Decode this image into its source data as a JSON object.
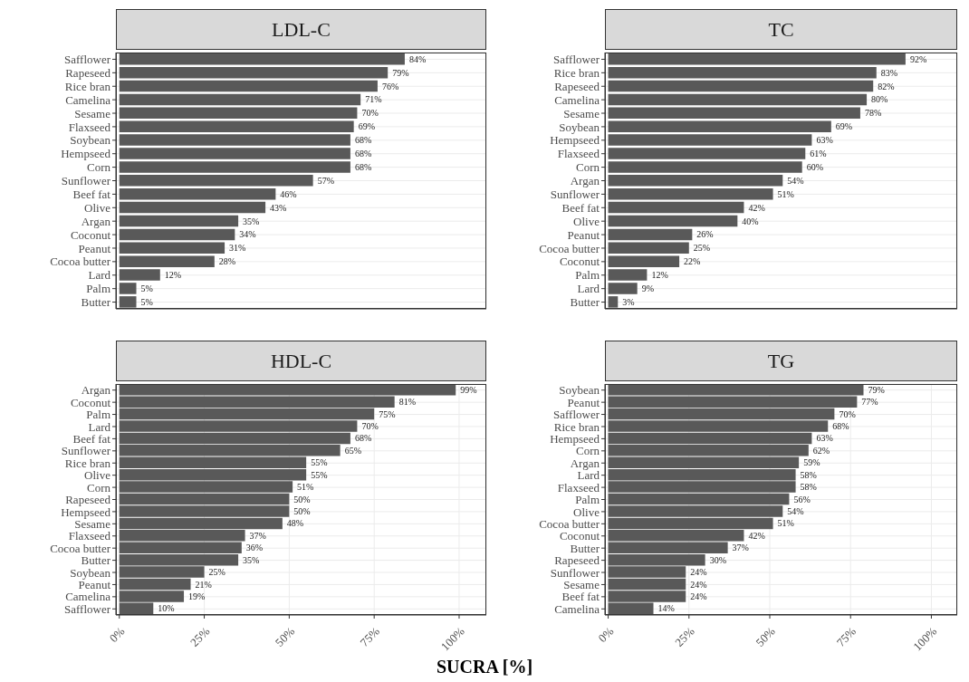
{
  "chart_data": [
    {
      "type": "bar",
      "orientation": "horizontal",
      "title": "LDL-C",
      "categories": [
        "Safflower",
        "Rapeseed",
        "Rice bran",
        "Camelina",
        "Sesame",
        "Flaxseed",
        "Soybean",
        "Hempseed",
        "Corn",
        "Sunflower",
        "Beef fat",
        "Olive",
        "Argan",
        "Coconut",
        "Peanut",
        "Cocoa butter",
        "Lard",
        "Palm",
        "Butter"
      ],
      "values": [
        84,
        79,
        76,
        71,
        70,
        69,
        68,
        68,
        68,
        57,
        46,
        43,
        35,
        34,
        31,
        28,
        12,
        5,
        5
      ],
      "value_labels": [
        "84%",
        "79%",
        "76%",
        "71%",
        "70%",
        "69%",
        "68%",
        "68%",
        "68%",
        "57%",
        "46%",
        "43%",
        "35%",
        "34%",
        "31%",
        "28%",
        "12%",
        "5%",
        "5%"
      ],
      "color": "#595959",
      "xlim": [
        -1,
        108
      ],
      "xticks": [
        {
          "value": 0,
          "label": null
        },
        {
          "value": 25,
          "label": null
        },
        {
          "value": 50,
          "label": null
        },
        {
          "value": 75,
          "label": null
        },
        {
          "value": 100,
          "label": null
        }
      ],
      "grid": true,
      "tick_labels": "y"
    },
    {
      "type": "bar",
      "orientation": "horizontal",
      "title": "TC",
      "categories": [
        "Safflower",
        "Rice bran",
        "Rapeseed",
        "Camelina",
        "Sesame",
        "Soybean",
        "Hempseed",
        "Flaxseed",
        "Corn",
        "Argan",
        "Sunflower",
        "Beef fat",
        "Olive",
        "Peanut",
        "Cocoa butter",
        "Coconut",
        "Palm",
        "Lard",
        "Butter"
      ],
      "values": [
        92,
        83,
        82,
        80,
        78,
        69,
        63,
        61,
        60,
        54,
        51,
        42,
        40,
        26,
        25,
        22,
        12,
        9,
        3
      ],
      "value_labels": [
        "92%",
        "83%",
        "82%",
        "80%",
        "78%",
        "69%",
        "63%",
        "61%",
        "60%",
        "54%",
        "51%",
        "42%",
        "40%",
        "26%",
        "25%",
        "22%",
        "12%",
        "9%",
        "3%"
      ],
      "color": "#595959",
      "xlim": [
        -1,
        108
      ],
      "xticks": [
        {
          "value": 0,
          "label": null
        },
        {
          "value": 25,
          "label": null
        },
        {
          "value": 50,
          "label": null
        },
        {
          "value": 75,
          "label": null
        },
        {
          "value": 100,
          "label": null
        }
      ],
      "grid": true,
      "tick_labels": "y"
    },
    {
      "type": "bar",
      "orientation": "horizontal",
      "title": "HDL-C",
      "xlabel": "SUCRA [%]",
      "categories": [
        "Argan",
        "Coconut",
        "Palm",
        "Lard",
        "Beef fat",
        "Sunflower",
        "Rice bran",
        "Olive",
        "Corn",
        "Rapeseed",
        "Hempseed",
        "Sesame",
        "Flaxseed",
        "Cocoa butter",
        "Butter",
        "Soybean",
        "Peanut",
        "Camelina",
        "Safflower"
      ],
      "values": [
        99,
        81,
        75,
        70,
        68,
        65,
        55,
        55,
        51,
        50,
        50,
        48,
        37,
        36,
        35,
        25,
        21,
        19,
        10
      ],
      "value_labels": [
        "99%",
        "81%",
        "75%",
        "70%",
        "68%",
        "65%",
        "55%",
        "55%",
        "51%",
        "50%",
        "50%",
        "48%",
        "37%",
        "36%",
        "35%",
        "25%",
        "21%",
        "19%",
        "10%"
      ],
      "color": "#595959",
      "xlim": [
        -1,
        108
      ],
      "xticks": [
        {
          "value": 0,
          "label": "0%"
        },
        {
          "value": 25,
          "label": "25%"
        },
        {
          "value": 50,
          "label": "50%"
        },
        {
          "value": 75,
          "label": "75%"
        },
        {
          "value": 100,
          "label": "100%"
        }
      ],
      "grid": true
    },
    {
      "type": "bar",
      "orientation": "horizontal",
      "title": "TG",
      "categories": [
        "Soybean",
        "Peanut",
        "Safflower",
        "Rice bran",
        "Hempseed",
        "Corn",
        "Argan",
        "Lard",
        "Flaxseed",
        "Palm",
        "Olive",
        "Cocoa butter",
        "Coconut",
        "Butter",
        "Rapeseed",
        "Sunflower",
        "Sesame",
        "Beef fat",
        "Camelina"
      ],
      "values": [
        79,
        77,
        70,
        68,
        63,
        62,
        59,
        58,
        58,
        56,
        54,
        51,
        42,
        37,
        30,
        24,
        24,
        24,
        14
      ],
      "value_labels": [
        "79%",
        "77%",
        "70%",
        "68%",
        "63%",
        "62%",
        "59%",
        "58%",
        "58%",
        "56%",
        "54%",
        "51%",
        "42%",
        "37%",
        "30%",
        "24%",
        "24%",
        "24%",
        "14%"
      ],
      "color": "#595959",
      "xlim": [
        -1,
        108
      ],
      "xticks": [
        {
          "value": 0,
          "label": "0%"
        },
        {
          "value": 25,
          "label": "25%"
        },
        {
          "value": 50,
          "label": "50%"
        },
        {
          "value": 75,
          "label": "75%"
        },
        {
          "value": 100,
          "label": "100%"
        }
      ],
      "grid": true
    }
  ]
}
